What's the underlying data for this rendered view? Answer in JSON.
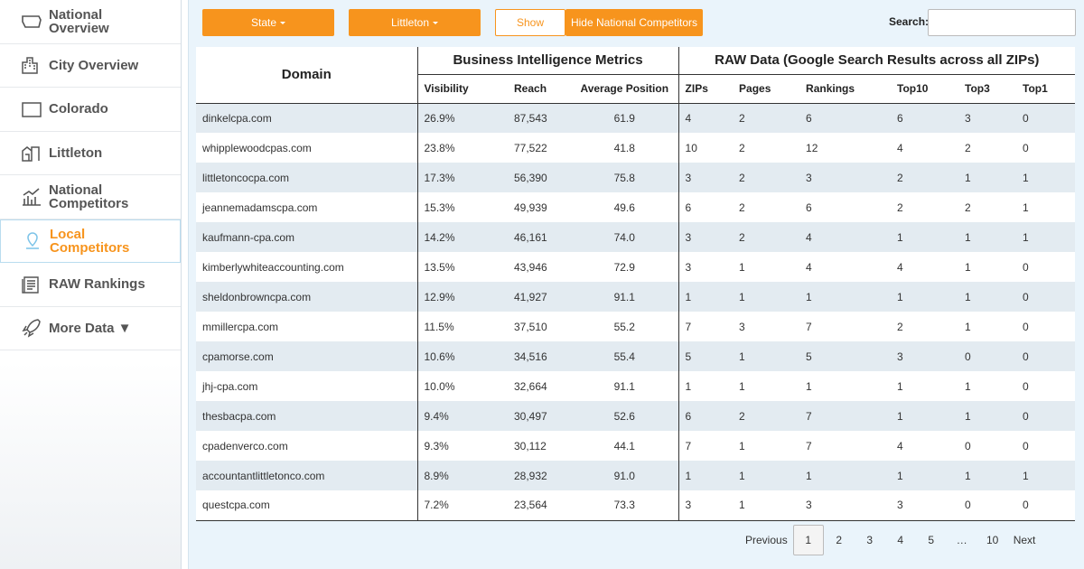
{
  "sidebar": {
    "items": [
      "National Overview",
      "City Overview",
      "Colorado",
      "Littleton",
      "National Competitors",
      "Local Competitors",
      "RAW Rankings",
      "More Data ▼"
    ]
  },
  "toolbar": {
    "state_button": "State",
    "city_button": "Littleton",
    "show_button": "Show",
    "hide_button": "Hide National Competitors",
    "search_label": "Search:"
  },
  "table": {
    "domain_header": "Domain",
    "groups": [
      "Business Intelligence Metrics",
      "RAW Data (Google Search Results across all ZIPs)"
    ],
    "columns": [
      "Visibility",
      "Reach",
      "Average Position",
      "ZIPs",
      "Pages",
      "Rankings",
      "Top10",
      "Top3",
      "Top1"
    ],
    "rows": [
      [
        "dinkelcpa.com",
        "26.9%",
        "87,543",
        "61.9",
        "4",
        "2",
        "6",
        "6",
        "3",
        "0"
      ],
      [
        "whipplewoodcpas.com",
        "23.8%",
        "77,522",
        "41.8",
        "10",
        "2",
        "12",
        "4",
        "2",
        "0"
      ],
      [
        "littletoncocpa.com",
        "17.3%",
        "56,390",
        "75.8",
        "3",
        "2",
        "3",
        "2",
        "1",
        "1"
      ],
      [
        "jeannemadamscpa.com",
        "15.3%",
        "49,939",
        "49.6",
        "6",
        "2",
        "6",
        "2",
        "2",
        "1"
      ],
      [
        "kaufmann-cpa.com",
        "14.2%",
        "46,161",
        "74.0",
        "3",
        "2",
        "4",
        "1",
        "1",
        "1"
      ],
      [
        "kimberlywhiteaccounting.com",
        "13.5%",
        "43,946",
        "72.9",
        "3",
        "1",
        "4",
        "4",
        "1",
        "0"
      ],
      [
        "sheldonbrowncpa.com",
        "12.9%",
        "41,927",
        "91.1",
        "1",
        "1",
        "1",
        "1",
        "1",
        "0"
      ],
      [
        "mmillercpa.com",
        "11.5%",
        "37,510",
        "55.2",
        "7",
        "3",
        "7",
        "2",
        "1",
        "0"
      ],
      [
        "cpamorse.com",
        "10.6%",
        "34,516",
        "55.4",
        "5",
        "1",
        "5",
        "3",
        "0",
        "0"
      ],
      [
        "jhj-cpa.com",
        "10.0%",
        "32,664",
        "91.1",
        "1",
        "1",
        "1",
        "1",
        "1",
        "0"
      ],
      [
        "thesbacpa.com",
        "9.4%",
        "30,497",
        "52.6",
        "6",
        "2",
        "7",
        "1",
        "1",
        "0"
      ],
      [
        "cpadenverco.com",
        "9.3%",
        "30,112",
        "44.1",
        "7",
        "1",
        "7",
        "4",
        "0",
        "0"
      ],
      [
        "accountantlittletonco.com",
        "8.9%",
        "28,932",
        "91.0",
        "1",
        "1",
        "1",
        "1",
        "1",
        "1"
      ],
      [
        "questcpa.com",
        "7.2%",
        "23,564",
        "73.3",
        "3",
        "1",
        "3",
        "3",
        "0",
        "0"
      ]
    ]
  },
  "pagination": [
    "Previous",
    "1",
    "2",
    "3",
    "4",
    "5",
    "…",
    "10",
    "Next"
  ]
}
